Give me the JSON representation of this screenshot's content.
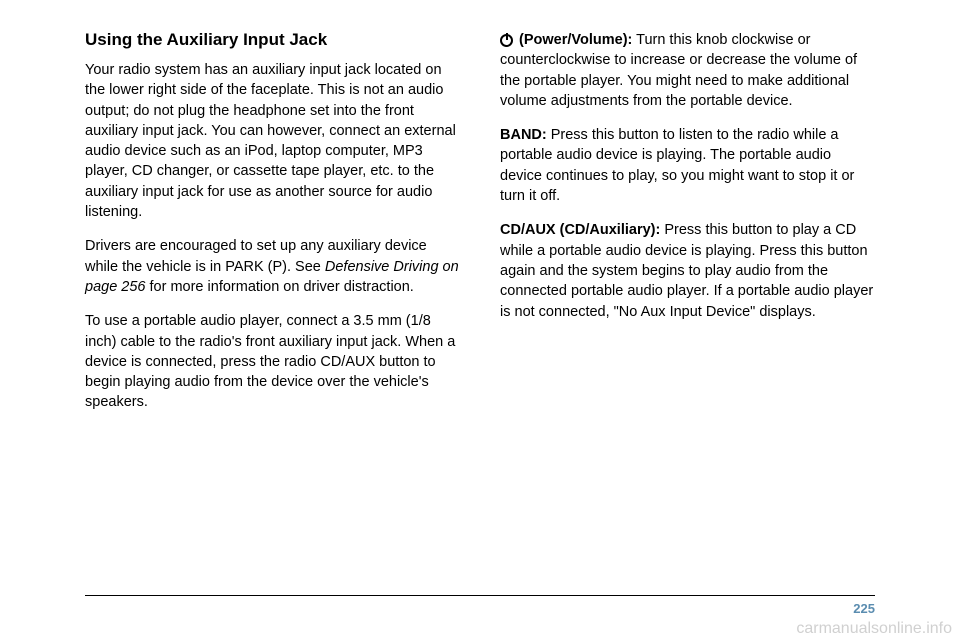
{
  "left_column": {
    "heading": "Using the Auxiliary Input Jack",
    "para1": "Your radio system has an auxiliary input jack located on the lower right side of the faceplate. This is not an audio output; do not plug the headphone set into the front auxiliary input jack. You can however, connect an external audio device such as an iPod, laptop computer, MP3 player, CD changer, or cassette tape player, etc. to the auxiliary input jack for use as another source for audio listening.",
    "para2_a": "Drivers are encouraged to set up any auxiliary device while the vehicle is in PARK (P). See ",
    "para2_italic": "Defensive Driving on page 256",
    "para2_b": " for more information on driver distraction.",
    "para3": "To use a portable audio player, connect a 3.5 mm (1/8 inch) cable to the radio's front auxiliary input jack. When a device is connected, press the radio CD/AUX button to begin playing audio from the device over the vehicle's speakers."
  },
  "right_column": {
    "power_label": " (Power/Volume):",
    "power_text": " Turn this knob clockwise or counterclockwise to increase or decrease the volume of the portable player. You might need to make additional volume adjustments from the portable device.",
    "band_label": "BAND:",
    "band_text": " Press this button to listen to the radio while a portable audio device is playing. The portable audio device continues to play, so you might want to stop it or turn it off.",
    "cdaux_label": "CD/AUX (CD/Auxiliary):",
    "cdaux_text": " Press this button to play a CD while a portable audio device is playing. Press this button again and the system begins to play audio from the connected portable audio player. If a portable audio player is not connected, \"No Aux Input Device\" displays."
  },
  "page_number": "225",
  "watermark": "carmanualsonline.info"
}
